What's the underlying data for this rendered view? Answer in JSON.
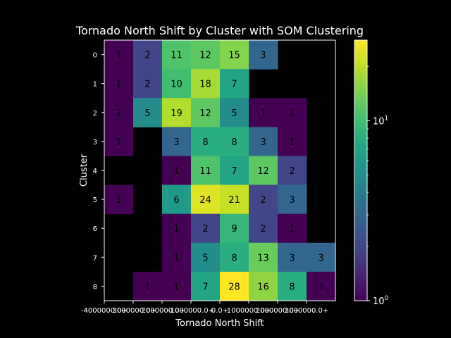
{
  "chart_data": {
    "type": "heatmap",
    "title": "Tornado North Shift by Cluster with SOM Clustering",
    "xlabel": "Tornado North Shift",
    "ylabel": "Cluster",
    "x_tick_labels": [
      "-4000000.0+",
      "-3000000.0+",
      "-2000000.0+",
      "-1000000.0+",
      "0.0+",
      "1000000.0+",
      "2000000.0+",
      "3000000.0+"
    ],
    "y_tick_labels": [
      "0",
      "1",
      "2",
      "3",
      "4",
      "5",
      "6",
      "7",
      "8"
    ],
    "values": [
      [
        1,
        2,
        11,
        12,
        15,
        3,
        null,
        null
      ],
      [
        1,
        2,
        10,
        18,
        7,
        null,
        null,
        null
      ],
      [
        1,
        5,
        19,
        12,
        5,
        1,
        1,
        null
      ],
      [
        1,
        null,
        3,
        8,
        8,
        3,
        1,
        null
      ],
      [
        null,
        null,
        1,
        11,
        7,
        12,
        2,
        null
      ],
      [
        1,
        null,
        6,
        24,
        21,
        2,
        3,
        null
      ],
      [
        null,
        null,
        1,
        2,
        9,
        2,
        1,
        null
      ],
      [
        null,
        null,
        1,
        5,
        8,
        13,
        3,
        3
      ],
      [
        null,
        1,
        1,
        7,
        28,
        16,
        8,
        1
      ]
    ],
    "colorbar": {
      "scale": "log",
      "colormap": "viridis",
      "min": 1,
      "max": 28,
      "tick_labels": [
        "10^0",
        "10^1"
      ]
    },
    "background_color": "#000000",
    "grid": false
  }
}
